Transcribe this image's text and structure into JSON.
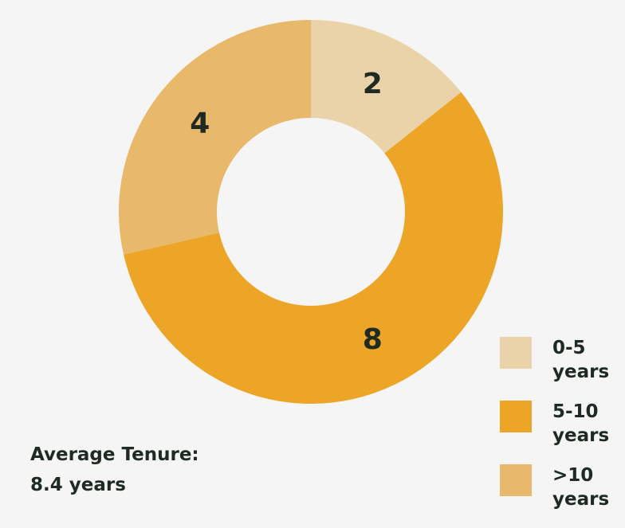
{
  "chart_data": {
    "type": "donut",
    "categories": [
      "0-5 years",
      "5-10 years",
      ">10 years"
    ],
    "values": [
      2,
      8,
      4
    ],
    "colors": [
      "#ebd3a9",
      "#eca527",
      "#e9b96b"
    ],
    "legend": "bottom-right",
    "annotations": [
      "Average Tenure:",
      "8.4 years"
    ]
  }
}
